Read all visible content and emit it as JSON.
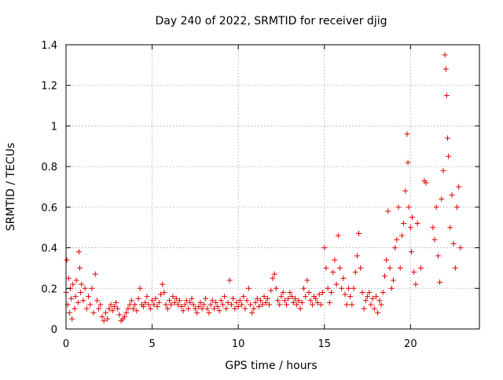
{
  "chart_data": {
    "type": "scatter",
    "title": "Day 240 of 2022, SRMTID for receiver djig",
    "xlabel": "GPS time / hours",
    "ylabel": "SRMTID / TECUs",
    "xlim": [
      0,
      24
    ],
    "ylim": [
      0,
      1.4
    ],
    "xticks": [
      0,
      5,
      10,
      15,
      20
    ],
    "xtick_labels": [
      "0",
      "5",
      "10",
      "15",
      "20"
    ],
    "yticks": [
      0,
      0.2,
      0.4,
      0.6,
      0.8,
      1.0,
      1.2,
      1.4
    ],
    "ytick_labels": [
      "0",
      "0.2",
      "0.4",
      "0.6",
      "0.8",
      "1",
      "1.2",
      "1.4"
    ],
    "grid": true,
    "marker": "+",
    "color": "#e00000",
    "series": [
      {
        "name": "SRMTID",
        "points": [
          [
            0.0,
            0.18
          ],
          [
            0.05,
            0.34
          ],
          [
            0.1,
            0.12
          ],
          [
            0.15,
            0.25
          ],
          [
            0.2,
            0.08
          ],
          [
            0.25,
            0.2
          ],
          [
            0.3,
            0.15
          ],
          [
            0.35,
            0.05
          ],
          [
            0.4,
            0.22
          ],
          [
            0.5,
            0.1
          ],
          [
            0.55,
            0.16
          ],
          [
            0.6,
            0.24
          ],
          [
            0.7,
            0.13
          ],
          [
            0.75,
            0.38
          ],
          [
            0.8,
            0.3
          ],
          [
            0.85,
            0.18
          ],
          [
            0.9,
            0.22
          ],
          [
            1.0,
            0.14
          ],
          [
            1.1,
            0.2
          ],
          [
            1.2,
            0.1
          ],
          [
            1.3,
            0.16
          ],
          [
            1.4,
            0.12
          ],
          [
            1.5,
            0.2
          ],
          [
            1.6,
            0.08
          ],
          [
            1.7,
            0.27
          ],
          [
            1.8,
            0.14
          ],
          [
            1.9,
            0.1
          ],
          [
            2.0,
            0.12
          ],
          [
            2.1,
            0.06
          ],
          [
            2.2,
            0.04
          ],
          [
            2.3,
            0.08
          ],
          [
            2.4,
            0.05
          ],
          [
            2.5,
            0.1
          ],
          [
            2.6,
            0.12
          ],
          [
            2.7,
            0.09
          ],
          [
            2.8,
            0.11
          ],
          [
            2.9,
            0.13
          ],
          [
            3.0,
            0.1
          ],
          [
            3.1,
            0.07
          ],
          [
            3.2,
            0.04
          ],
          [
            3.3,
            0.05
          ],
          [
            3.4,
            0.06
          ],
          [
            3.5,
            0.08
          ],
          [
            3.6,
            0.1
          ],
          [
            3.7,
            0.12
          ],
          [
            3.8,
            0.14
          ],
          [
            3.9,
            0.1
          ],
          [
            4.0,
            0.12
          ],
          [
            4.1,
            0.09
          ],
          [
            4.2,
            0.15
          ],
          [
            4.3,
            0.2
          ],
          [
            4.4,
            0.12
          ],
          [
            4.5,
            0.11
          ],
          [
            4.6,
            0.13
          ],
          [
            4.7,
            0.16
          ],
          [
            4.8,
            0.12
          ],
          [
            4.9,
            0.1
          ],
          [
            5.0,
            0.14
          ],
          [
            5.1,
            0.12
          ],
          [
            5.2,
            0.15
          ],
          [
            5.3,
            0.11
          ],
          [
            5.4,
            0.13
          ],
          [
            5.5,
            0.17
          ],
          [
            5.6,
            0.22
          ],
          [
            5.7,
            0.18
          ],
          [
            5.8,
            0.12
          ],
          [
            5.9,
            0.1
          ],
          [
            6.0,
            0.14
          ],
          [
            6.1,
            0.12
          ],
          [
            6.2,
            0.16
          ],
          [
            6.3,
            0.13
          ],
          [
            6.4,
            0.15
          ],
          [
            6.5,
            0.12
          ],
          [
            6.6,
            0.14
          ],
          [
            6.7,
            0.11
          ],
          [
            6.8,
            0.09
          ],
          [
            6.9,
            0.12
          ],
          [
            7.0,
            0.14
          ],
          [
            7.1,
            0.1
          ],
          [
            7.2,
            0.13
          ],
          [
            7.3,
            0.15
          ],
          [
            7.4,
            0.12
          ],
          [
            7.5,
            0.1
          ],
          [
            7.6,
            0.08
          ],
          [
            7.7,
            0.11
          ],
          [
            7.8,
            0.13
          ],
          [
            7.9,
            0.1
          ],
          [
            8.0,
            0.12
          ],
          [
            8.1,
            0.15
          ],
          [
            8.2,
            0.1
          ],
          [
            8.3,
            0.08
          ],
          [
            8.4,
            0.12
          ],
          [
            8.5,
            0.14
          ],
          [
            8.6,
            0.1
          ],
          [
            8.7,
            0.13
          ],
          [
            8.8,
            0.11
          ],
          [
            8.9,
            0.09
          ],
          [
            9.0,
            0.14
          ],
          [
            9.1,
            0.12
          ],
          [
            9.2,
            0.16
          ],
          [
            9.3,
            0.1
          ],
          [
            9.4,
            0.13
          ],
          [
            9.5,
            0.24
          ],
          [
            9.6,
            0.12
          ],
          [
            9.7,
            0.15
          ],
          [
            9.8,
            0.1
          ],
          [
            9.9,
            0.13
          ],
          [
            10.0,
            0.11
          ],
          [
            10.1,
            0.14
          ],
          [
            10.2,
            0.12
          ],
          [
            10.3,
            0.16
          ],
          [
            10.4,
            0.1
          ],
          [
            10.5,
            0.14
          ],
          [
            10.6,
            0.2
          ],
          [
            10.7,
            0.12
          ],
          [
            10.8,
            0.08
          ],
          [
            10.9,
            0.1
          ],
          [
            11.0,
            0.13
          ],
          [
            11.1,
            0.15
          ],
          [
            11.2,
            0.11
          ],
          [
            11.3,
            0.14
          ],
          [
            11.4,
            0.12
          ],
          [
            11.5,
            0.16
          ],
          [
            11.6,
            0.13
          ],
          [
            11.7,
            0.15
          ],
          [
            11.8,
            0.12
          ],
          [
            11.9,
            0.19
          ],
          [
            12.0,
            0.25
          ],
          [
            12.1,
            0.27
          ],
          [
            12.2,
            0.2
          ],
          [
            12.3,
            0.14
          ],
          [
            12.4,
            0.12
          ],
          [
            12.5,
            0.16
          ],
          [
            12.6,
            0.18
          ],
          [
            12.7,
            0.14
          ],
          [
            12.8,
            0.12
          ],
          [
            12.9,
            0.15
          ],
          [
            13.0,
            0.18
          ],
          [
            13.1,
            0.16
          ],
          [
            13.2,
            0.13
          ],
          [
            13.3,
            0.15
          ],
          [
            13.4,
            0.12
          ],
          [
            13.5,
            0.14
          ],
          [
            13.6,
            0.1
          ],
          [
            13.7,
            0.13
          ],
          [
            13.8,
            0.2
          ],
          [
            13.9,
            0.16
          ],
          [
            14.0,
            0.24
          ],
          [
            14.1,
            0.18
          ],
          [
            14.2,
            0.14
          ],
          [
            14.3,
            0.12
          ],
          [
            14.4,
            0.16
          ],
          [
            14.5,
            0.15
          ],
          [
            14.6,
            0.13
          ],
          [
            14.7,
            0.17
          ],
          [
            14.8,
            0.12
          ],
          [
            14.9,
            0.18
          ],
          [
            15.0,
            0.4
          ],
          [
            15.1,
            0.3
          ],
          [
            15.2,
            0.2
          ],
          [
            15.3,
            0.13
          ],
          [
            15.4,
            0.18
          ],
          [
            15.5,
            0.28
          ],
          [
            15.6,
            0.34
          ],
          [
            15.7,
            0.22
          ],
          [
            15.8,
            0.46
          ],
          [
            15.9,
            0.3
          ],
          [
            16.0,
            0.2
          ],
          [
            16.1,
            0.25
          ],
          [
            16.2,
            0.17
          ],
          [
            16.3,
            0.12
          ],
          [
            16.4,
            0.2
          ],
          [
            16.5,
            0.16
          ],
          [
            16.6,
            0.12
          ],
          [
            16.7,
            0.2
          ],
          [
            16.8,
            0.28
          ],
          [
            16.9,
            0.36
          ],
          [
            17.0,
            0.47
          ],
          [
            17.1,
            0.3
          ],
          [
            17.2,
            0.18
          ],
          [
            17.3,
            0.1
          ],
          [
            17.4,
            0.14
          ],
          [
            17.5,
            0.16
          ],
          [
            17.6,
            0.18
          ],
          [
            17.7,
            0.12
          ],
          [
            17.8,
            0.15
          ],
          [
            17.9,
            0.1
          ],
          [
            18.0,
            0.16
          ],
          [
            18.1,
            0.08
          ],
          [
            18.2,
            0.14
          ],
          [
            18.3,
            0.12
          ],
          [
            18.4,
            0.18
          ],
          [
            18.5,
            0.26
          ],
          [
            18.6,
            0.34
          ],
          [
            18.7,
            0.58
          ],
          [
            18.8,
            0.3
          ],
          [
            18.9,
            0.2
          ],
          [
            19.0,
            0.24
          ],
          [
            19.1,
            0.4
          ],
          [
            19.2,
            0.44
          ],
          [
            19.3,
            0.6
          ],
          [
            19.4,
            0.3
          ],
          [
            19.5,
            0.46
          ],
          [
            19.6,
            0.52
          ],
          [
            19.7,
            0.68
          ],
          [
            19.8,
            0.96
          ],
          [
            19.85,
            0.82
          ],
          [
            19.9,
            0.6
          ],
          [
            20.0,
            0.5
          ],
          [
            20.05,
            0.38
          ],
          [
            20.1,
            0.55
          ],
          [
            20.2,
            0.28
          ],
          [
            20.3,
            0.22
          ],
          [
            20.4,
            0.52
          ],
          [
            20.6,
            0.3
          ],
          [
            20.8,
            0.73
          ],
          [
            20.9,
            0.72
          ],
          [
            21.3,
            0.5
          ],
          [
            21.4,
            0.44
          ],
          [
            21.5,
            0.6
          ],
          [
            21.6,
            0.36
          ],
          [
            21.7,
            0.23
          ],
          [
            21.8,
            0.64
          ],
          [
            21.9,
            0.78
          ],
          [
            22.0,
            1.35
          ],
          [
            22.05,
            1.28
          ],
          [
            22.1,
            1.15
          ],
          [
            22.15,
            0.94
          ],
          [
            22.2,
            0.85
          ],
          [
            22.3,
            0.5
          ],
          [
            22.4,
            0.66
          ],
          [
            22.5,
            0.42
          ],
          [
            22.6,
            0.3
          ],
          [
            22.7,
            0.6
          ],
          [
            22.8,
            0.7
          ],
          [
            22.9,
            0.4
          ]
        ]
      }
    ]
  }
}
